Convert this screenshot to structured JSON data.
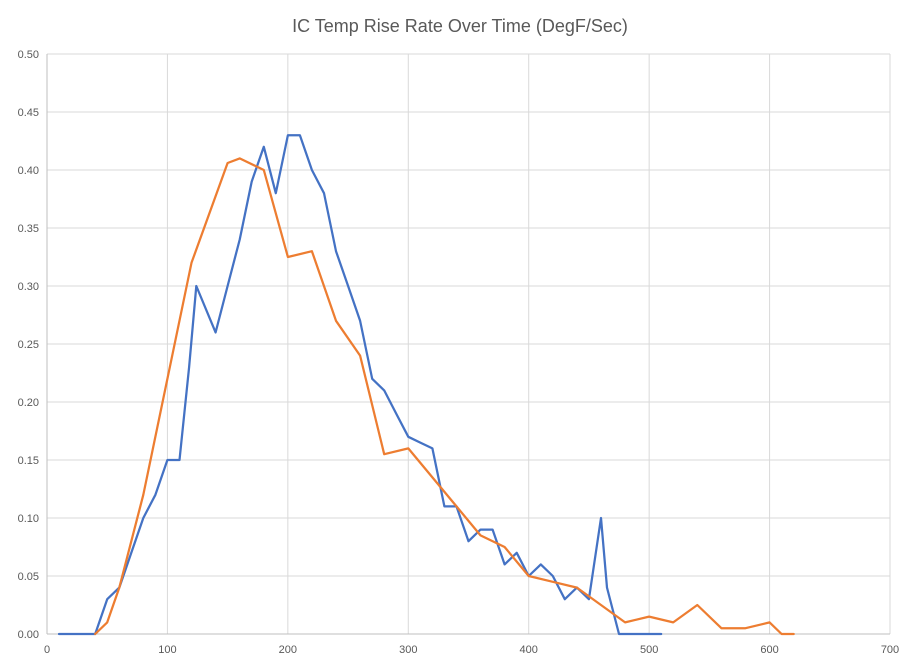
{
  "chart_data": {
    "type": "line",
    "title": "IC Temp Rise Rate Over Time (DegF/Sec)",
    "xlabel": "",
    "ylabel": "",
    "xlim": [
      0,
      700
    ],
    "ylim": [
      0,
      0.5
    ],
    "x_ticks": [
      "0",
      "100",
      "200",
      "300",
      "400",
      "500",
      "600",
      "700"
    ],
    "y_ticks": [
      "0.00",
      "0.05",
      "0.10",
      "0.15",
      "0.20",
      "0.25",
      "0.30",
      "0.35",
      "0.40",
      "0.45",
      "0.50"
    ],
    "grid": true,
    "legend": false,
    "series": [
      {
        "color": "#4472C4",
        "points": [
          [
            10,
            0
          ],
          [
            40,
            0
          ],
          [
            50,
            0.03
          ],
          [
            60,
            0.04
          ],
          [
            70,
            0.07
          ],
          [
            80,
            0.1
          ],
          [
            90,
            0.12
          ],
          [
            100,
            0.15
          ],
          [
            110,
            0.15
          ],
          [
            118,
            0.23
          ],
          [
            124,
            0.3
          ],
          [
            140,
            0.26
          ],
          [
            150,
            0.3
          ],
          [
            160,
            0.34
          ],
          [
            170,
            0.39
          ],
          [
            180,
            0.42
          ],
          [
            190,
            0.38
          ],
          [
            200,
            0.43
          ],
          [
            210,
            0.43
          ],
          [
            220,
            0.4
          ],
          [
            230,
            0.38
          ],
          [
            240,
            0.33
          ],
          [
            250,
            0.3
          ],
          [
            260,
            0.27
          ],
          [
            270,
            0.22
          ],
          [
            280,
            0.21
          ],
          [
            290,
            0.19
          ],
          [
            300,
            0.17
          ],
          [
            310,
            0.165
          ],
          [
            320,
            0.16
          ],
          [
            330,
            0.11
          ],
          [
            340,
            0.11
          ],
          [
            350,
            0.08
          ],
          [
            360,
            0.09
          ],
          [
            370,
            0.09
          ],
          [
            380,
            0.06
          ],
          [
            390,
            0.07
          ],
          [
            400,
            0.05
          ],
          [
            410,
            0.06
          ],
          [
            420,
            0.05
          ],
          [
            430,
            0.03
          ],
          [
            440,
            0.04
          ],
          [
            450,
            0.03
          ],
          [
            460,
            0.1
          ],
          [
            465,
            0.04
          ],
          [
            475,
            0
          ],
          [
            490,
            0
          ],
          [
            510,
            0
          ]
        ]
      },
      {
        "color": "#ED7D31",
        "points": [
          [
            40,
            0
          ],
          [
            50,
            0.01
          ],
          [
            60,
            0.04
          ],
          [
            80,
            0.12
          ],
          [
            100,
            0.22
          ],
          [
            120,
            0.32
          ],
          [
            150,
            0.406
          ],
          [
            160,
            0.41
          ],
          [
            180,
            0.4
          ],
          [
            200,
            0.325
          ],
          [
            220,
            0.33
          ],
          [
            240,
            0.27
          ],
          [
            260,
            0.24
          ],
          [
            280,
            0.155
          ],
          [
            300,
            0.16
          ],
          [
            340,
            0.11
          ],
          [
            360,
            0.085
          ],
          [
            380,
            0.075
          ],
          [
            400,
            0.05
          ],
          [
            420,
            0.045
          ],
          [
            440,
            0.04
          ],
          [
            460,
            0.025
          ],
          [
            480,
            0.01
          ],
          [
            500,
            0.015
          ],
          [
            520,
            0.01
          ],
          [
            540,
            0.025
          ],
          [
            560,
            0.005
          ],
          [
            580,
            0.005
          ],
          [
            600,
            0.01
          ],
          [
            610,
            0
          ],
          [
            620,
            0
          ]
        ]
      }
    ]
  }
}
